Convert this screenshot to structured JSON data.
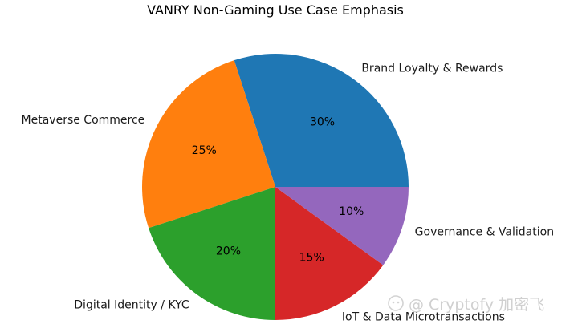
{
  "chart_data": {
    "type": "pie",
    "title": "VANRY Non-Gaming Use Case Emphasis",
    "start_angle_deg": 0,
    "direction": "counterclockwise",
    "slices": [
      {
        "label": "Brand Loyalty & Rewards",
        "value": 30,
        "pct_label": "30%",
        "color": "#1f77b4"
      },
      {
        "label": "Metaverse Commerce",
        "value": 25,
        "pct_label": "25%",
        "color": "#ff7f0e"
      },
      {
        "label": "Digital Identity / KYC",
        "value": 20,
        "pct_label": "20%",
        "color": "#2ca02c"
      },
      {
        "label": "IoT & Data Microtransactions",
        "value": 15,
        "pct_label": "15%",
        "color": "#d62728"
      },
      {
        "label": "Governance & Validation",
        "value": 10,
        "pct_label": "10%",
        "color": "#9467bd"
      }
    ]
  },
  "watermark": {
    "text": "@ Cryptofy 加密飞",
    "icon": "wechat-logo-icon"
  }
}
